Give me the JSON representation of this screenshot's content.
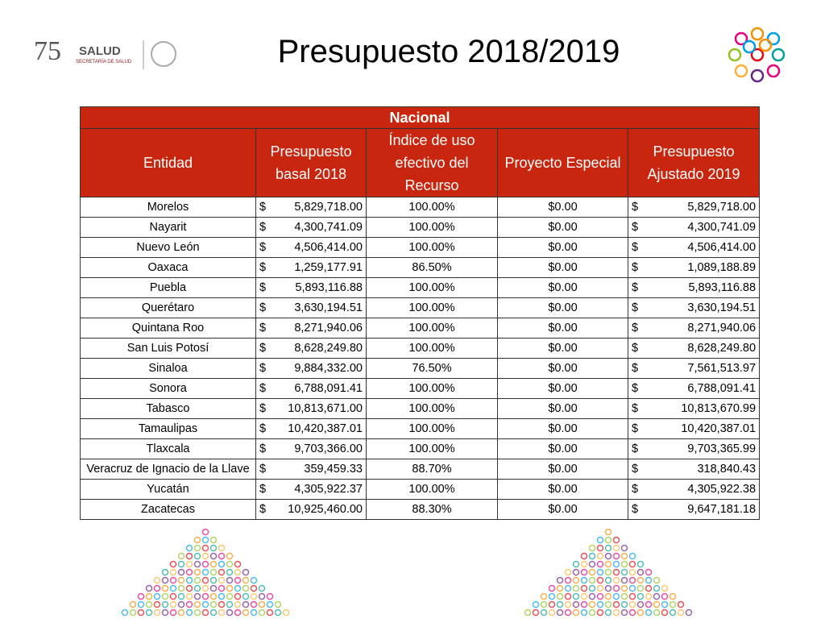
{
  "header": {
    "title": "Presupuesto 2018/2019",
    "logo": {
      "number": "75",
      "label": "SALUD",
      "sublabel": "SECRETARÍA DE SALUD"
    }
  },
  "table": {
    "caption": "Nacional",
    "columns": [
      "Entidad",
      "Presupuesto basal 2018",
      "Índice de uso efectivo del Recurso",
      "Proyecto Especial",
      "Presupuesto Ajustado 2019"
    ],
    "rows": [
      [
        "Morelos",
        [
          "$",
          "5,829,718.00"
        ],
        "100.00%",
        "$0.00",
        [
          "$",
          "5,829,718.00"
        ]
      ],
      [
        "Nayarit",
        [
          "$",
          "4,300,741.09"
        ],
        "100.00%",
        "$0.00",
        [
          "$",
          "4,300,741.09"
        ]
      ],
      [
        "Nuevo León",
        [
          "$",
          "4,506,414.00"
        ],
        "100.00%",
        "$0.00",
        [
          "$",
          "4,506,414.00"
        ]
      ],
      [
        "Oaxaca",
        [
          "$",
          "1,259,177.91"
        ],
        "86.50%",
        "$0.00",
        [
          "$",
          "1,089,188.89"
        ]
      ],
      [
        "Puebla",
        [
          "$",
          "5,893,116.88"
        ],
        "100.00%",
        "$0.00",
        [
          "$",
          "5,893,116.88"
        ]
      ],
      [
        "Querétaro",
        [
          "$",
          "3,630,194.51"
        ],
        "100.00%",
        "$0.00",
        [
          "$",
          "3,630,194.51"
        ]
      ],
      [
        "Quintana Roo",
        [
          "$",
          "8,271,940.06"
        ],
        "100.00%",
        "$0.00",
        [
          "$",
          "8,271,940.06"
        ]
      ],
      [
        "San Luis Potosí",
        [
          "$",
          "8,628,249.80"
        ],
        "100.00%",
        "$0.00",
        [
          "$",
          "8,628,249.80"
        ]
      ],
      [
        "Sinaloa",
        [
          "$",
          "9,884,332.00"
        ],
        "76.50%",
        "$0.00",
        [
          "$",
          "7,561,513.97"
        ]
      ],
      [
        "Sonora",
        [
          "$",
          "6,788,091.41"
        ],
        "100.00%",
        "$0.00",
        [
          "$",
          "6,788,091.41"
        ]
      ],
      [
        "Tabasco",
        [
          "$",
          "10,813,671.00"
        ],
        "100.00%",
        "$0.00",
        [
          "$",
          "10,813,670.99"
        ]
      ],
      [
        "Tamaulipas",
        [
          "$",
          "10,420,387.01"
        ],
        "100.00%",
        "$0.00",
        [
          "$",
          "10,420,387.01"
        ]
      ],
      [
        "Tlaxcala",
        [
          "$",
          "9,703,366.00"
        ],
        "100.00%",
        "$0.00",
        [
          "$",
          "9,703,365.99"
        ]
      ],
      [
        "Veracruz de Ignacio de la Llave",
        [
          "$",
          "359,459.33"
        ],
        "88.70%",
        "$0.00",
        [
          "$",
          "318,840.43"
        ]
      ],
      [
        "Yucatán",
        [
          "$",
          "4,305,922.37"
        ],
        "100.00%",
        "$0.00",
        [
          "$",
          "4,305,922.38"
        ]
      ],
      [
        "Zacatecas",
        [
          "$",
          "10,925,460.00"
        ],
        "88.30%",
        "$0.00",
        [
          "$",
          "9,647,181.18"
        ]
      ]
    ]
  }
}
